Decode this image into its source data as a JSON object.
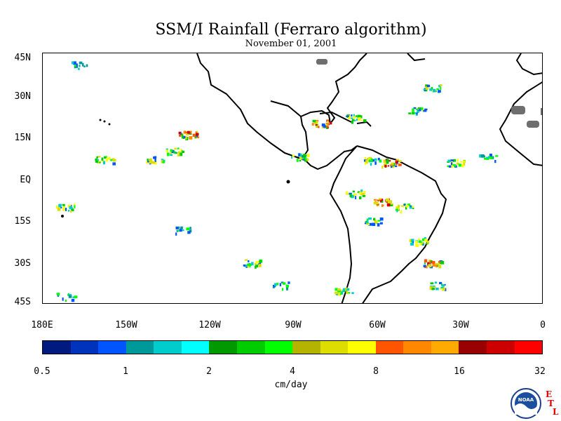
{
  "title": "SSM/I Rainfall (Ferraro algorithm)",
  "subtitle": "November 01, 2001",
  "lat_labels": [
    "45N",
    "30N",
    "15N",
    "EQ",
    "15S",
    "30S",
    "45S"
  ],
  "lon_labels": [
    "180E",
    "150W",
    "120W",
    "90W",
    "60W",
    "30W",
    "0"
  ],
  "colorbar": {
    "colors": [
      "#001a80",
      "#0033bb",
      "#0055ff",
      "#009999",
      "#00cccc",
      "#00ffff",
      "#009900",
      "#00cc00",
      "#00ff00",
      "#b3b300",
      "#dddd00",
      "#ffff00",
      "#ff5500",
      "#ff8800",
      "#ffaa00",
      "#990000",
      "#cc0000",
      "#ff0000"
    ],
    "tick_labels": [
      "0.5",
      "1",
      "2",
      "4",
      "8",
      "16",
      "32"
    ],
    "units": "cm/day"
  },
  "logo": {
    "name": "noaa-logo",
    "text": "NOAA",
    "side_letters": [
      "E",
      "T",
      "L"
    ]
  },
  "map": {
    "lat_range": [
      -45,
      45
    ],
    "lon_range": [
      -180,
      0
    ],
    "rain_clusters": [
      {
        "lon": -167,
        "lat": 41,
        "intensity": "low"
      },
      {
        "lon": -158,
        "lat": 7,
        "intensity": "medium"
      },
      {
        "lon": -140,
        "lat": 7,
        "intensity": "medium"
      },
      {
        "lon": -133,
        "lat": 10,
        "intensity": "medium"
      },
      {
        "lon": -128,
        "lat": 16,
        "intensity": "high"
      },
      {
        "lon": -172,
        "lat": -10,
        "intensity": "medium"
      },
      {
        "lon": -130,
        "lat": -18,
        "intensity": "low"
      },
      {
        "lon": -105,
        "lat": -30,
        "intensity": "medium"
      },
      {
        "lon": -95,
        "lat": -38,
        "intensity": "low"
      },
      {
        "lon": -172,
        "lat": -42,
        "intensity": "low"
      },
      {
        "lon": -88,
        "lat": 8,
        "intensity": "medium"
      },
      {
        "lon": -80,
        "lat": 20,
        "intensity": "high"
      },
      {
        "lon": -68,
        "lat": 22,
        "intensity": "medium"
      },
      {
        "lon": -62,
        "lat": 7,
        "intensity": "medium"
      },
      {
        "lon": -55,
        "lat": 6,
        "intensity": "high"
      },
      {
        "lon": -68,
        "lat": -5,
        "intensity": "medium"
      },
      {
        "lon": -58,
        "lat": -8,
        "intensity": "high"
      },
      {
        "lon": -50,
        "lat": -10,
        "intensity": "medium"
      },
      {
        "lon": -62,
        "lat": -15,
        "intensity": "medium"
      },
      {
        "lon": -40,
        "lat": 33,
        "intensity": "medium"
      },
      {
        "lon": -46,
        "lat": 25,
        "intensity": "medium"
      },
      {
        "lon": -32,
        "lat": 6,
        "intensity": "medium"
      },
      {
        "lon": -20,
        "lat": 8,
        "intensity": "low"
      },
      {
        "lon": -40,
        "lat": -30,
        "intensity": "high"
      },
      {
        "lon": -38,
        "lat": -38,
        "intensity": "medium"
      },
      {
        "lon": -72,
        "lat": -40,
        "intensity": "medium"
      },
      {
        "lon": -45,
        "lat": -22,
        "intensity": "medium"
      }
    ]
  }
}
